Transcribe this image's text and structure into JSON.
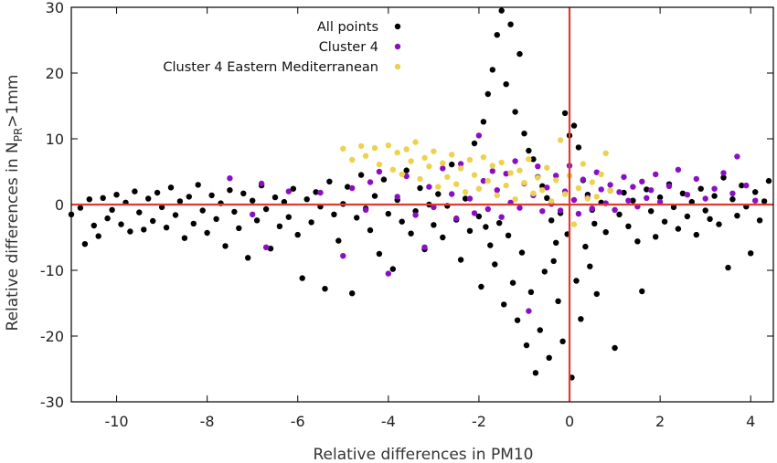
{
  "chart_data": {
    "type": "scatter",
    "xlabel": "Relative differences in PM10",
    "ylabel_main": "Relative differences in N",
    "ylabel_sub": "PR",
    "ylabel_tail": ">1mm",
    "xlim": [
      -11,
      4.5
    ],
    "ylim": [
      -30,
      30
    ],
    "x_ticks": [
      -10,
      -8,
      -6,
      -4,
      -2,
      0,
      2,
      4
    ],
    "y_ticks": [
      -30,
      -20,
      -10,
      0,
      10,
      20,
      30
    ],
    "x_tick_labels": [
      "-10",
      "-8",
      "-6",
      "-4",
      "-2",
      "0",
      "2",
      "4"
    ],
    "y_tick_labels": [
      "-30",
      "-20",
      "-10",
      "0",
      "10",
      "20",
      "30"
    ],
    "grid": false,
    "reference_lines": [
      {
        "orientation": "horizontal",
        "value": 0,
        "color": "#e03c31"
      },
      {
        "orientation": "vertical",
        "value": 0,
        "color": "#e03c31"
      }
    ],
    "legend_position": "top-center",
    "series": [
      {
        "name": "All points",
        "color": "#000000",
        "points": [
          [
            -11.0,
            -1.5
          ],
          [
            -10.8,
            -0.5
          ],
          [
            -10.7,
            -6.0
          ],
          [
            -10.6,
            0.8
          ],
          [
            -10.5,
            -3.2
          ],
          [
            -10.4,
            -4.8
          ],
          [
            -10.3,
            1.0
          ],
          [
            -10.2,
            -2.1
          ],
          [
            -10.1,
            -0.8
          ],
          [
            -10.0,
            1.5
          ],
          [
            -9.9,
            -3.0
          ],
          [
            -9.8,
            0.3
          ],
          [
            -9.7,
            -4.1
          ],
          [
            -9.6,
            2.0
          ],
          [
            -9.5,
            -1.2
          ],
          [
            -9.4,
            -3.8
          ],
          [
            -9.3,
            0.9
          ],
          [
            -9.2,
            -2.5
          ],
          [
            -9.1,
            1.8
          ],
          [
            -9.0,
            -0.4
          ],
          [
            -8.9,
            -3.5
          ],
          [
            -8.8,
            2.6
          ],
          [
            -8.7,
            -1.6
          ],
          [
            -8.6,
            0.5
          ],
          [
            -8.5,
            -5.1
          ],
          [
            -8.4,
            1.2
          ],
          [
            -8.3,
            -2.9
          ],
          [
            -8.2,
            3.0
          ],
          [
            -8.1,
            -0.9
          ],
          [
            -8.0,
            -4.3
          ],
          [
            -7.9,
            1.4
          ],
          [
            -7.8,
            -2.2
          ],
          [
            -7.7,
            0.2
          ],
          [
            -7.6,
            -6.3
          ],
          [
            -7.5,
            2.2
          ],
          [
            -7.4,
            -1.1
          ],
          [
            -7.3,
            -3.6
          ],
          [
            -7.2,
            1.7
          ],
          [
            -7.1,
            -8.1
          ],
          [
            -7.0,
            0.6
          ],
          [
            -6.9,
            -2.4
          ],
          [
            -6.8,
            2.9
          ],
          [
            -6.7,
            -0.7
          ],
          [
            -6.6,
            -6.7
          ],
          [
            -6.5,
            1.1
          ],
          [
            -6.4,
            -3.3
          ],
          [
            -6.3,
            0.4
          ],
          [
            -6.2,
            -1.9
          ],
          [
            -6.1,
            2.4
          ],
          [
            -6.0,
            -4.6
          ],
          [
            -5.9,
            -11.2
          ],
          [
            -5.8,
            0.8
          ],
          [
            -5.7,
            -2.7
          ],
          [
            -5.6,
            1.9
          ],
          [
            -5.5,
            -0.3
          ],
          [
            -5.4,
            -12.8
          ],
          [
            -5.3,
            3.5
          ],
          [
            -5.2,
            -1.5
          ],
          [
            -5.1,
            -5.5
          ],
          [
            -5.0,
            0.1
          ],
          [
            -4.9,
            2.7
          ],
          [
            -4.8,
            -13.5
          ],
          [
            -4.7,
            -2.0
          ],
          [
            -4.6,
            4.5
          ],
          [
            -4.5,
            -0.6
          ],
          [
            -4.4,
            -3.9
          ],
          [
            -4.3,
            1.3
          ],
          [
            -4.2,
            -7.5
          ],
          [
            -4.1,
            3.8
          ],
          [
            -4.0,
            -1.4
          ],
          [
            -3.9,
            -9.8
          ],
          [
            -3.8,
            0.7
          ],
          [
            -3.7,
            -2.6
          ],
          [
            -3.6,
            5.2
          ],
          [
            -3.5,
            -4.4
          ],
          [
            -3.4,
            -1.0
          ],
          [
            -3.3,
            2.5
          ],
          [
            -3.2,
            -6.8
          ],
          [
            -3.1,
            0.0
          ],
          [
            -3.0,
            -3.1
          ],
          [
            -2.9,
            1.6
          ],
          [
            -2.8,
            -5.0
          ],
          [
            -2.7,
            -0.2
          ],
          [
            -2.6,
            6.1
          ],
          [
            -2.5,
            -2.3
          ],
          [
            -2.4,
            -8.4
          ],
          [
            -2.3,
            0.9
          ],
          [
            -2.2,
            -4.0
          ],
          [
            -2.1,
            9.3
          ],
          [
            -2.0,
            -1.8
          ],
          [
            -1.95,
            -12.5
          ],
          [
            -1.9,
            12.6
          ],
          [
            -1.85,
            -3.4
          ],
          [
            -1.8,
            16.8
          ],
          [
            -1.75,
            -6.2
          ],
          [
            -1.7,
            20.5
          ],
          [
            -1.65,
            -9.1
          ],
          [
            -1.6,
            25.8
          ],
          [
            -1.55,
            -2.8
          ],
          [
            -1.5,
            29.5
          ],
          [
            -1.45,
            -15.2
          ],
          [
            -1.4,
            18.3
          ],
          [
            -1.35,
            -4.7
          ],
          [
            -1.3,
            27.4
          ],
          [
            -1.25,
            -11.9
          ],
          [
            -1.2,
            14.1
          ],
          [
            -1.15,
            -17.6
          ],
          [
            -1.1,
            22.9
          ],
          [
            -1.05,
            -7.3
          ],
          [
            -1.0,
            10.8
          ],
          [
            -0.95,
            -21.4
          ],
          [
            -0.9,
            8.2
          ],
          [
            -0.85,
            -13.3
          ],
          [
            -0.8,
            6.9
          ],
          [
            -0.75,
            -25.6
          ],
          [
            -0.7,
            4.2
          ],
          [
            -0.65,
            -19.1
          ],
          [
            -0.6,
            2.8
          ],
          [
            -0.55,
            -10.2
          ],
          [
            -0.5,
            1.0
          ],
          [
            -0.45,
            -23.3
          ],
          [
            -0.4,
            -2.4
          ],
          [
            -0.35,
            -8.6
          ],
          [
            -0.3,
            -5.8
          ],
          [
            -0.25,
            -14.7
          ],
          [
            -0.2,
            -1.3
          ],
          [
            -0.15,
            -20.8
          ],
          [
            -0.1,
            13.9
          ],
          [
            -0.05,
            -4.5
          ],
          [
            0.0,
            10.5
          ],
          [
            0.05,
            -26.3
          ],
          [
            0.1,
            12.0
          ],
          [
            0.15,
            -11.6
          ],
          [
            0.2,
            8.7
          ],
          [
            0.25,
            -17.4
          ],
          [
            0.3,
            3.7
          ],
          [
            0.35,
            -6.4
          ],
          [
            0.4,
            1.5
          ],
          [
            0.45,
            -9.4
          ],
          [
            0.5,
            -0.8
          ],
          [
            0.55,
            -2.9
          ],
          [
            0.6,
            -13.6
          ],
          [
            0.7,
            0.3
          ],
          [
            0.8,
            -4.2
          ],
          [
            0.9,
            2.1
          ],
          [
            1.0,
            -21.8
          ],
          [
            1.1,
            -1.5
          ],
          [
            1.2,
            1.8
          ],
          [
            1.3,
            -3.3
          ],
          [
            1.4,
            0.6
          ],
          [
            1.5,
            -5.6
          ],
          [
            1.6,
            -13.2
          ],
          [
            1.7,
            2.3
          ],
          [
            1.8,
            -1.0
          ],
          [
            1.9,
            -4.9
          ],
          [
            2.0,
            1.1
          ],
          [
            2.1,
            -2.6
          ],
          [
            2.2,
            3.1
          ],
          [
            2.3,
            -0.4
          ],
          [
            2.4,
            -3.7
          ],
          [
            2.5,
            1.7
          ],
          [
            2.6,
            -1.8
          ],
          [
            2.7,
            0.4
          ],
          [
            2.8,
            -4.6
          ],
          [
            2.9,
            2.4
          ],
          [
            3.0,
            -0.9
          ],
          [
            3.1,
            -2.2
          ],
          [
            3.2,
            1.3
          ],
          [
            3.3,
            -3.0
          ],
          [
            3.4,
            4.1
          ],
          [
            3.5,
            -9.6
          ],
          [
            3.6,
            0.8
          ],
          [
            3.7,
            -1.7
          ],
          [
            3.8,
            2.9
          ],
          [
            3.9,
            -0.3
          ],
          [
            4.0,
            -7.4
          ],
          [
            4.1,
            1.9
          ],
          [
            4.2,
            -2.4
          ],
          [
            4.3,
            0.5
          ],
          [
            4.4,
            3.6
          ]
        ]
      },
      {
        "name": "Cluster 4",
        "color": "#8a0fc4",
        "points": [
          [
            -7.5,
            4.0
          ],
          [
            -7.0,
            -1.5
          ],
          [
            -6.8,
            3.2
          ],
          [
            -6.7,
            -6.5
          ],
          [
            -6.2,
            2.0
          ],
          [
            -5.5,
            1.8
          ],
          [
            -5.0,
            -7.8
          ],
          [
            -4.8,
            2.5
          ],
          [
            -4.5,
            -0.8
          ],
          [
            -4.4,
            3.4
          ],
          [
            -4.2,
            5.0
          ],
          [
            -4.0,
            -10.5
          ],
          [
            -3.8,
            1.2
          ],
          [
            -3.6,
            4.3
          ],
          [
            -3.4,
            -1.6
          ],
          [
            -3.2,
            -6.5
          ],
          [
            -3.1,
            2.7
          ],
          [
            -3.0,
            -0.4
          ],
          [
            -2.8,
            5.5
          ],
          [
            -2.6,
            1.6
          ],
          [
            -2.5,
            -2.1
          ],
          [
            -2.4,
            6.2
          ],
          [
            -2.2,
            0.9
          ],
          [
            -2.1,
            -1.3
          ],
          [
            -2.0,
            10.5
          ],
          [
            -1.9,
            3.6
          ],
          [
            -1.8,
            -0.7
          ],
          [
            -1.7,
            5.1
          ],
          [
            -1.6,
            2.2
          ],
          [
            -1.5,
            -1.9
          ],
          [
            -1.4,
            4.7
          ],
          [
            -1.3,
            0.3
          ],
          [
            -1.2,
            6.6
          ],
          [
            -1.1,
            -0.5
          ],
          [
            -1.0,
            3.2
          ],
          [
            -0.9,
            -16.2
          ],
          [
            -0.8,
            1.4
          ],
          [
            -0.7,
            5.8
          ],
          [
            -0.6,
            -1.0
          ],
          [
            -0.5,
            2.6
          ],
          [
            -0.4,
            0.1
          ],
          [
            -0.3,
            4.4
          ],
          [
            -0.2,
            -0.9
          ],
          [
            -0.1,
            2.0
          ],
          [
            0.0,
            5.9
          ],
          [
            0.1,
            0.7
          ],
          [
            0.2,
            -1.4
          ],
          [
            0.3,
            3.8
          ],
          [
            0.4,
            1.1
          ],
          [
            0.5,
            -0.6
          ],
          [
            0.6,
            4.9
          ],
          [
            0.7,
            2.3
          ],
          [
            0.8,
            0.2
          ],
          [
            0.9,
            3.0
          ],
          [
            1.0,
            -0.8
          ],
          [
            1.1,
            1.9
          ],
          [
            1.2,
            4.2
          ],
          [
            1.3,
            0.6
          ],
          [
            1.4,
            2.7
          ],
          [
            1.5,
            -0.3
          ],
          [
            1.6,
            3.5
          ],
          [
            1.7,
            1.0
          ],
          [
            1.8,
            2.2
          ],
          [
            1.9,
            4.6
          ],
          [
            2.0,
            0.4
          ],
          [
            2.2,
            2.8
          ],
          [
            2.4,
            5.3
          ],
          [
            2.6,
            1.5
          ],
          [
            2.8,
            3.9
          ],
          [
            3.0,
            0.9
          ],
          [
            3.2,
            2.4
          ],
          [
            3.4,
            4.8
          ],
          [
            3.6,
            1.7
          ],
          [
            3.7,
            7.3
          ],
          [
            3.9,
            2.9
          ],
          [
            4.1,
            0.6
          ]
        ]
      },
      {
        "name": "Cluster 4 Eastern Mediterranean",
        "color": "#ecd24e",
        "points": [
          [
            -5.0,
            8.5
          ],
          [
            -4.8,
            6.8
          ],
          [
            -4.6,
            8.9
          ],
          [
            -4.5,
            7.4
          ],
          [
            -4.3,
            8.6
          ],
          [
            -4.2,
            6.1
          ],
          [
            -4.0,
            9.0
          ],
          [
            -3.9,
            5.3
          ],
          [
            -3.8,
            7.9
          ],
          [
            -3.7,
            4.6
          ],
          [
            -3.6,
            8.4
          ],
          [
            -3.5,
            6.6
          ],
          [
            -3.4,
            9.5
          ],
          [
            -3.3,
            3.9
          ],
          [
            -3.2,
            7.1
          ],
          [
            -3.1,
            5.8
          ],
          [
            -3.0,
            8.1
          ],
          [
            -2.9,
            2.7
          ],
          [
            -2.8,
            6.3
          ],
          [
            -2.7,
            4.2
          ],
          [
            -2.6,
            7.6
          ],
          [
            -2.5,
            3.1
          ],
          [
            -2.4,
            5.5
          ],
          [
            -2.3,
            1.9
          ],
          [
            -2.2,
            6.8
          ],
          [
            -2.1,
            4.5
          ],
          [
            -2.0,
            2.4
          ],
          [
            -1.9,
            7.2
          ],
          [
            -1.8,
            3.6
          ],
          [
            -1.7,
            5.9
          ],
          [
            -1.6,
            1.4
          ],
          [
            -1.5,
            6.4
          ],
          [
            -1.4,
            2.9
          ],
          [
            -1.3,
            4.8
          ],
          [
            -1.2,
            0.8
          ],
          [
            -1.1,
            5.2
          ],
          [
            -1.0,
            3.3
          ],
          [
            -0.9,
            6.9
          ],
          [
            -0.8,
            1.7
          ],
          [
            -0.7,
            4.1
          ],
          [
            -0.6,
            2.2
          ],
          [
            -0.5,
            5.6
          ],
          [
            -0.4,
            0.5
          ],
          [
            -0.3,
            3.7
          ],
          [
            -0.2,
            9.8
          ],
          [
            -0.1,
            1.6
          ],
          [
            0.0,
            4.4
          ],
          [
            0.1,
            -3.0
          ],
          [
            0.2,
            2.5
          ],
          [
            0.3,
            6.2
          ],
          [
            0.4,
            0.9
          ],
          [
            0.5,
            3.4
          ],
          [
            0.6,
            1.2
          ],
          [
            0.7,
            4.6
          ],
          [
            0.8,
            7.8
          ],
          [
            0.9,
            2.1
          ]
        ]
      }
    ]
  }
}
